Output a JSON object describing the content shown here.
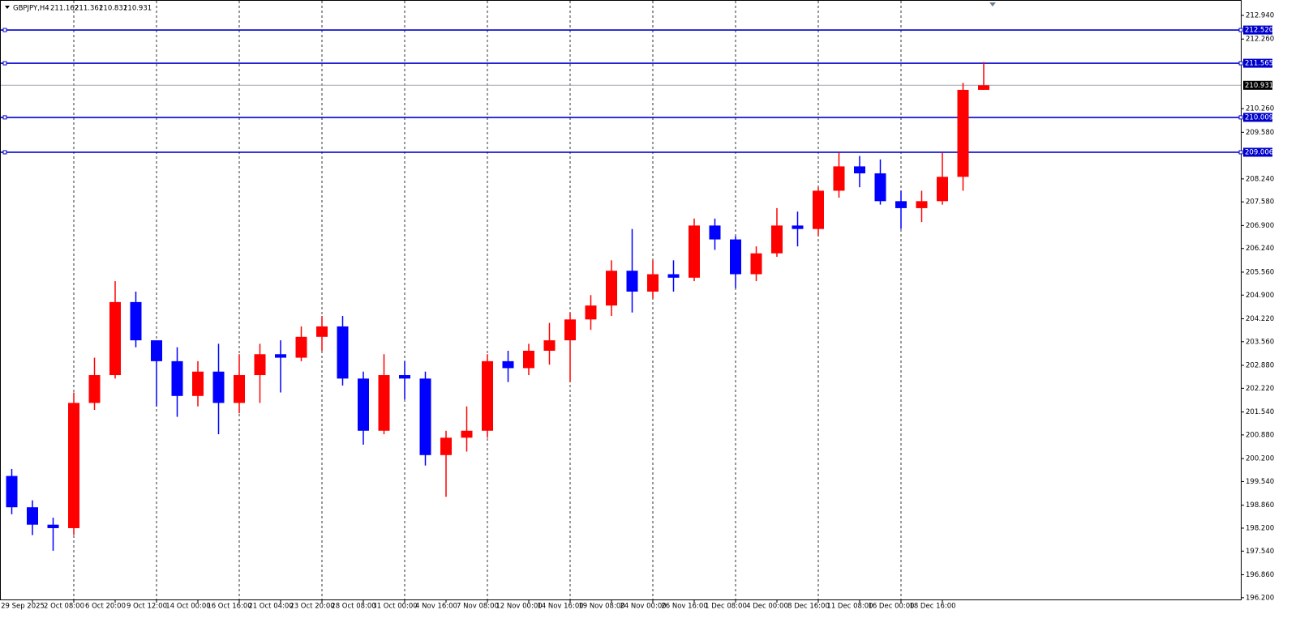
{
  "chart_data": {
    "type": "candlestick",
    "symbol": "GBPJPY,H4",
    "header_ohlc": [
      211.162,
      211.361,
      210.831,
      210.931
    ],
    "categories": [
      null,
      "29 Sep 2025",
      null,
      "2 Oct 08:00",
      null,
      "6 Oct 20:00",
      null,
      "9 Oct 12:00",
      null,
      "14 Oct 00:00",
      null,
      "16 Oct 16:00",
      null,
      "21 Oct 04:00",
      null,
      "23 Oct 20:00",
      null,
      "28 Oct 08:00",
      null,
      "31 Oct 00:00",
      null,
      "4 Nov 16:00",
      null,
      "7 Nov 08:00",
      null,
      "12 Nov 00:00",
      null,
      "14 Nov 16:00",
      null,
      "19 Nov 08:00",
      null,
      "24 Nov 00:00",
      null,
      "26 Nov 16:00",
      null,
      "1 Dec 08:00",
      null,
      "4 Dec 00:00",
      null,
      "8 Dec 16:00",
      null,
      "11 Dec 08:00",
      null,
      "16 Dec 00:00",
      null,
      "18 Dec 16:00",
      null,
      null
    ],
    "open": [
      199.7,
      198.8,
      198.3,
      198.2,
      201.8,
      202.6,
      204.7,
      203.6,
      203.0,
      202.0,
      202.7,
      201.8,
      202.6,
      203.2,
      203.1,
      203.7,
      204.0,
      202.5,
      201.0,
      202.6,
      202.5,
      200.3,
      200.8,
      201.0,
      203.0,
      202.8,
      203.3,
      203.6,
      204.2,
      204.6,
      205.6,
      205.0,
      205.5,
      205.4,
      206.9,
      206.5,
      205.5,
      206.1,
      206.9,
      206.8,
      207.9,
      208.6,
      208.4,
      207.6,
      207.4,
      207.6,
      208.3,
      210.8
    ],
    "high": [
      199.9,
      199.0,
      198.5,
      202.1,
      203.1,
      205.3,
      205.0,
      203.6,
      203.4,
      203.0,
      203.5,
      203.2,
      203.5,
      203.6,
      204.0,
      204.3,
      204.3,
      202.7,
      203.2,
      203.0,
      202.7,
      201.0,
      201.7,
      203.2,
      203.3,
      203.5,
      204.1,
      204.4,
      204.9,
      205.9,
      206.8,
      205.9,
      205.9,
      207.1,
      207.1,
      206.6,
      206.3,
      207.4,
      207.3,
      208.0,
      209.0,
      208.9,
      208.8,
      207.9,
      207.9,
      209.0,
      211.0,
      211.6
    ],
    "low": [
      198.6,
      198.0,
      197.55,
      198.0,
      201.6,
      202.5,
      203.4,
      201.7,
      201.4,
      201.7,
      200.9,
      201.5,
      201.8,
      202.1,
      203.0,
      203.3,
      202.3,
      200.6,
      200.9,
      201.9,
      200.0,
      199.1,
      200.4,
      200.8,
      202.4,
      202.6,
      202.9,
      202.4,
      203.9,
      204.3,
      204.4,
      204.8,
      205.0,
      205.3,
      206.2,
      205.1,
      205.3,
      206.0,
      206.3,
      206.6,
      207.7,
      208.0,
      207.5,
      206.8,
      207.0,
      207.5,
      207.9,
      210.8
    ],
    "close": [
      198.8,
      198.3,
      198.2,
      201.8,
      202.6,
      204.7,
      203.6,
      203.0,
      202.0,
      202.7,
      201.8,
      202.6,
      203.2,
      203.1,
      203.7,
      204.0,
      202.5,
      201.0,
      202.6,
      202.5,
      200.3,
      200.8,
      201.0,
      203.0,
      202.8,
      203.3,
      203.6,
      204.2,
      204.6,
      205.6,
      205.0,
      205.5,
      205.4,
      206.9,
      206.5,
      205.5,
      206.1,
      206.9,
      206.8,
      207.9,
      208.6,
      208.4,
      207.6,
      207.4,
      207.6,
      208.3,
      210.8,
      210.931
    ],
    "up_color": "#ff0000",
    "down_color": "#0000ff",
    "levels": [
      {
        "value": 212.52,
        "label": "212.520"
      },
      {
        "value": 211.565,
        "label": "211.565"
      },
      {
        "value": 210.009,
        "label": "210.009"
      },
      {
        "value": 209.006,
        "label": "209.006"
      }
    ],
    "level_color": "#0000cc",
    "current_price": 210.931,
    "ylim": [
      196.15,
      213.29
    ],
    "yticks": [
      {
        "value": 196.2,
        "label": "196.200"
      },
      {
        "value": 196.86,
        "label": "196.860"
      },
      {
        "value": 197.54,
        "label": "197.540"
      },
      {
        "value": 198.2,
        "label": "198.200"
      },
      {
        "value": 198.86,
        "label": "198.860"
      },
      {
        "value": 199.54,
        "label": "199.540"
      },
      {
        "value": 200.2,
        "label": "200.200"
      },
      {
        "value": 200.88,
        "label": "200.880"
      },
      {
        "value": 201.54,
        "label": "201.540"
      },
      {
        "value": 202.22,
        "label": "202.220"
      },
      {
        "value": 202.88,
        "label": "202.880"
      },
      {
        "value": 203.56,
        "label": "203.560"
      },
      {
        "value": 204.22,
        "label": "204.220"
      },
      {
        "value": 204.9,
        "label": "204.900"
      },
      {
        "value": 205.56,
        "label": "205.560"
      },
      {
        "value": 206.24,
        "label": "206.240"
      },
      {
        "value": 206.9,
        "label": "206.900"
      },
      {
        "value": 207.58,
        "label": "207.580"
      },
      {
        "value": 208.24,
        "label": "208.240"
      },
      {
        "value": 209.58,
        "label": "209.580"
      },
      {
        "value": 210.26,
        "label": "210.260"
      },
      {
        "value": 212.26,
        "label": "212.260"
      },
      {
        "value": 212.94,
        "label": "212.940"
      }
    ]
  }
}
